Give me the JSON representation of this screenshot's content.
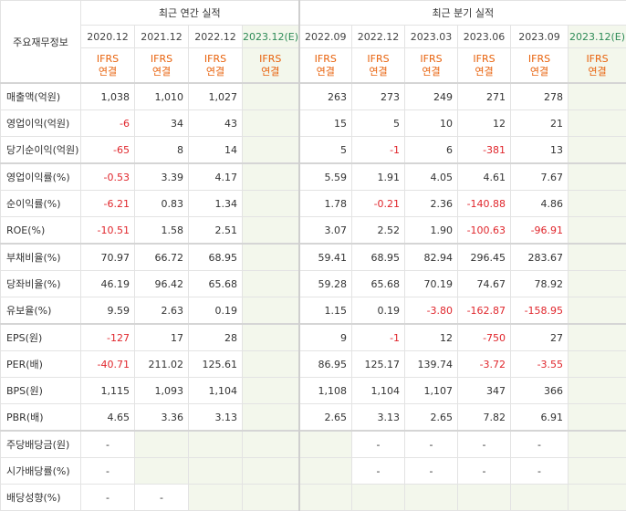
{
  "header": {
    "row_header_title": "주요재무정보",
    "annual_group": "최근 연간 실적",
    "quarter_group": "최근 분기 실적"
  },
  "periods": [
    "2020.12",
    "2021.12",
    "2022.12",
    "2023.12(E)",
    "2022.09",
    "2022.12",
    "2023.03",
    "2023.06",
    "2023.09",
    "2023.12(E)"
  ],
  "standard": {
    "line1": "IFRS",
    "line2": "연결"
  },
  "rows": [
    {
      "label": "매출액(억원)",
      "values": [
        "1,038",
        "1,010",
        "1,027",
        "",
        "263",
        "273",
        "249",
        "271",
        "278",
        ""
      ]
    },
    {
      "label": "영업이익(억원)",
      "values": [
        "-6",
        "34",
        "43",
        "",
        "15",
        "5",
        "10",
        "12",
        "21",
        ""
      ]
    },
    {
      "label": "당기순이익(억원)",
      "values": [
        "-65",
        "8",
        "14",
        "",
        "5",
        "-1",
        "6",
        "-381",
        "13",
        ""
      ]
    },
    {
      "label": "영업이익률(%)",
      "values": [
        "-0.53",
        "3.39",
        "4.17",
        "",
        "5.59",
        "1.91",
        "4.05",
        "4.61",
        "7.67",
        ""
      ]
    },
    {
      "label": "순이익률(%)",
      "values": [
        "-6.21",
        "0.83",
        "1.34",
        "",
        "1.78",
        "-0.21",
        "2.36",
        "-140.88",
        "4.86",
        ""
      ]
    },
    {
      "label": "ROE(%)",
      "values": [
        "-10.51",
        "1.58",
        "2.51",
        "",
        "3.07",
        "2.52",
        "1.90",
        "-100.63",
        "-96.91",
        ""
      ]
    },
    {
      "label": "부채비율(%)",
      "values": [
        "70.97",
        "66.72",
        "68.95",
        "",
        "59.41",
        "68.95",
        "82.94",
        "296.45",
        "283.67",
        ""
      ]
    },
    {
      "label": "당좌비율(%)",
      "values": [
        "46.19",
        "96.42",
        "65.68",
        "",
        "59.28",
        "65.68",
        "70.19",
        "74.67",
        "78.92",
        ""
      ]
    },
    {
      "label": "유보율(%)",
      "values": [
        "9.59",
        "2.63",
        "0.19",
        "",
        "1.15",
        "0.19",
        "-3.80",
        "-162.87",
        "-158.95",
        ""
      ]
    },
    {
      "label": "EPS(원)",
      "values": [
        "-127",
        "17",
        "28",
        "",
        "9",
        "-1",
        "12",
        "-750",
        "27",
        ""
      ]
    },
    {
      "label": "PER(배)",
      "values": [
        "-40.71",
        "211.02",
        "125.61",
        "",
        "86.95",
        "125.17",
        "139.74",
        "-3.72",
        "-3.55",
        ""
      ]
    },
    {
      "label": "BPS(원)",
      "values": [
        "1,115",
        "1,093",
        "1,104",
        "",
        "1,108",
        "1,104",
        "1,107",
        "347",
        "366",
        ""
      ]
    },
    {
      "label": "PBR(배)",
      "values": [
        "4.65",
        "3.36",
        "3.13",
        "",
        "2.65",
        "3.13",
        "2.65",
        "7.82",
        "6.91",
        ""
      ]
    },
    {
      "label": "주당배당금(원)",
      "values": [
        "-",
        "",
        "",
        "",
        "",
        "-",
        "-",
        "-",
        "-",
        ""
      ]
    },
    {
      "label": "시가배당률(%)",
      "values": [
        "-",
        "",
        "",
        "",
        "",
        "-",
        "-",
        "-",
        "-",
        ""
      ]
    },
    {
      "label": "배당성향(%)",
      "values": [
        "-",
        "-",
        "",
        "",
        "",
        "",
        "",
        "",
        "",
        ""
      ]
    }
  ],
  "colors": {
    "negative": "#e0262c",
    "ifrs": "#e8620c",
    "estimate_bg": "#f3f7ec",
    "estimate_text": "#2e8b57"
  }
}
